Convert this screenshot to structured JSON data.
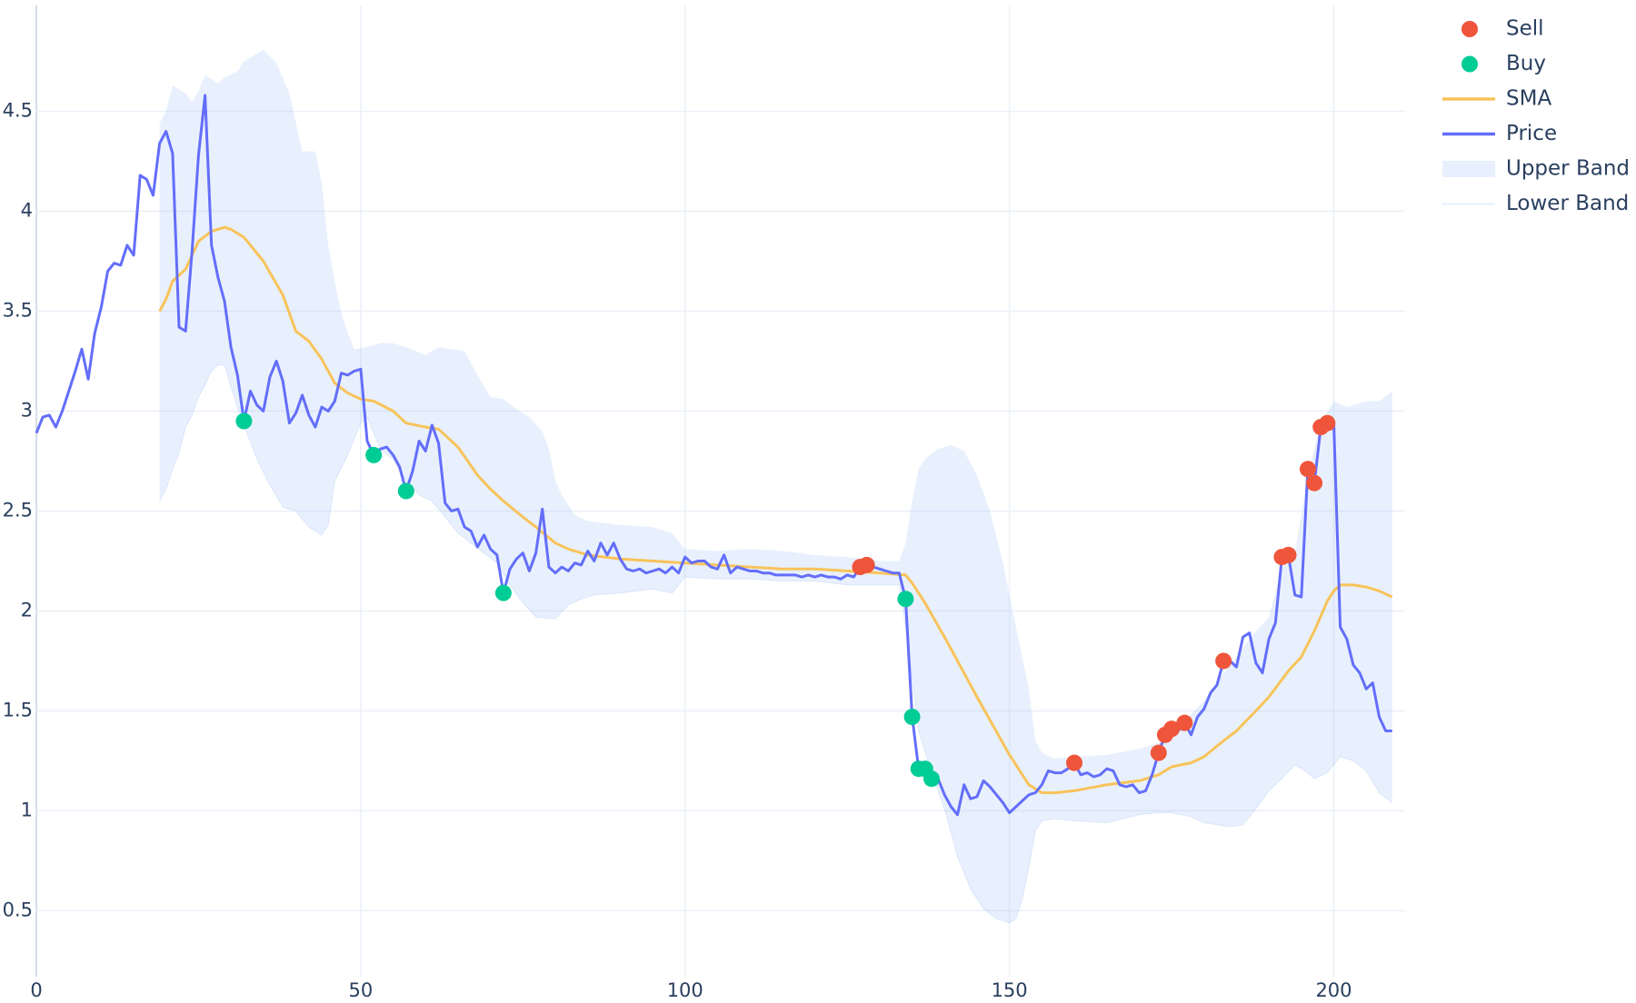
{
  "chart_data": {
    "type": "line",
    "xlim": [
      0,
      211
    ],
    "ylim": [
      0.17,
      5.03
    ],
    "xticks": [
      0,
      50,
      100,
      150,
      200
    ],
    "yticks": [
      0.5,
      1,
      1.5,
      2,
      2.5,
      3,
      3.5,
      4,
      4.5
    ],
    "grid": true,
    "legend": "top-right",
    "series": [
      {
        "name": "Sell",
        "color": "#ef553b",
        "mode": "markers",
        "x": [
          127,
          128,
          160,
          173,
          174,
          175,
          177,
          183,
          192,
          193,
          196,
          197,
          198,
          199
        ],
        "values": [
          2.22,
          2.23,
          1.24,
          1.29,
          1.38,
          1.41,
          1.44,
          1.75,
          2.27,
          2.28,
          2.71,
          2.64,
          2.92,
          2.94
        ]
      },
      {
        "name": "Buy",
        "color": "#00cc96",
        "mode": "markers",
        "x": [
          32,
          52,
          57,
          72,
          134,
          135,
          136,
          137,
          138
        ],
        "values": [
          2.95,
          2.78,
          2.6,
          2.09,
          2.06,
          1.47,
          1.21,
          1.21,
          1.16
        ]
      },
      {
        "name": "SMA",
        "color": "#f8c35a",
        "mode": "lines",
        "x": [
          19,
          20,
          21,
          23,
          25,
          27,
          29,
          30,
          32,
          35,
          38,
          40,
          42,
          44,
          46,
          48,
          50,
          52,
          55,
          57,
          60,
          62,
          65,
          68,
          70,
          72,
          75,
          77,
          80,
          82,
          85,
          90,
          95,
          100,
          105,
          110,
          115,
          120,
          125,
          130,
          134,
          135,
          137,
          140,
          145,
          150,
          153,
          155,
          157,
          160,
          165,
          170,
          173,
          175,
          178,
          180,
          183,
          185,
          188,
          190,
          193,
          195,
          197,
          199,
          200,
          201,
          203,
          205,
          207,
          209
        ],
        "values": [
          3.5,
          3.56,
          3.65,
          3.71,
          3.85,
          3.9,
          3.92,
          3.91,
          3.87,
          3.75,
          3.58,
          3.4,
          3.35,
          3.26,
          3.14,
          3.09,
          3.06,
          3.05,
          3.0,
          2.94,
          2.92,
          2.91,
          2.82,
          2.68,
          2.61,
          2.55,
          2.47,
          2.42,
          2.34,
          2.31,
          2.28,
          2.26,
          2.25,
          2.24,
          2.23,
          2.22,
          2.21,
          2.21,
          2.2,
          2.19,
          2.18,
          2.14,
          2.04,
          1.87,
          1.57,
          1.28,
          1.13,
          1.09,
          1.09,
          1.1,
          1.13,
          1.15,
          1.18,
          1.22,
          1.24,
          1.27,
          1.35,
          1.4,
          1.5,
          1.57,
          1.7,
          1.77,
          1.9,
          2.05,
          2.1,
          2.13,
          2.13,
          2.12,
          2.1,
          2.07
        ]
      },
      {
        "name": "Price",
        "color": "#636efa",
        "mode": "lines",
        "x": [
          0,
          1,
          2,
          3,
          4,
          5,
          6,
          7,
          8,
          9,
          10,
          11,
          12,
          13,
          14,
          15,
          16,
          17,
          18,
          19,
          20,
          21,
          22,
          23,
          24,
          25,
          26,
          27,
          28,
          29,
          30,
          31,
          32,
          33,
          34,
          35,
          36,
          37,
          38,
          39,
          40,
          41,
          42,
          43,
          44,
          45,
          46,
          47,
          48,
          49,
          50,
          51,
          52,
          53,
          54,
          55,
          56,
          57,
          58,
          59,
          60,
          61,
          62,
          63,
          64,
          65,
          66,
          67,
          68,
          69,
          70,
          71,
          72,
          73,
          74,
          75,
          76,
          77,
          78,
          79,
          80,
          81,
          82,
          83,
          84,
          85,
          86,
          87,
          88,
          89,
          90,
          91,
          92,
          93,
          94,
          95,
          96,
          97,
          98,
          99,
          100,
          101,
          102,
          103,
          104,
          105,
          106,
          107,
          108,
          109,
          110,
          111,
          112,
          113,
          114,
          115,
          116,
          117,
          118,
          119,
          120,
          121,
          122,
          123,
          124,
          125,
          126,
          127,
          128,
          129,
          130,
          131,
          132,
          133,
          134,
          135,
          136,
          137,
          138,
          139,
          140,
          141,
          142,
          143,
          144,
          145,
          146,
          147,
          148,
          149,
          150,
          151,
          152,
          153,
          154,
          155,
          156,
          157,
          158,
          159,
          160,
          161,
          162,
          163,
          164,
          165,
          166,
          167,
          168,
          169,
          170,
          171,
          172,
          173,
          174,
          175,
          176,
          177,
          178,
          179,
          180,
          181,
          182,
          183,
          184,
          185,
          186,
          187,
          188,
          189,
          190,
          191,
          192,
          193,
          194,
          195,
          196,
          197,
          198,
          199,
          200,
          201,
          202,
          203,
          204,
          205,
          206,
          207,
          208,
          209
        ],
        "values": [
          2.89,
          2.97,
          2.98,
          2.92,
          3.0,
          3.1,
          3.2,
          3.31,
          3.16,
          3.39,
          3.52,
          3.7,
          3.74,
          3.73,
          3.83,
          3.78,
          4.18,
          4.16,
          4.08,
          4.34,
          4.4,
          4.29,
          3.42,
          3.4,
          3.8,
          4.28,
          4.58,
          3.83,
          3.67,
          3.55,
          3.32,
          3.18,
          2.95,
          3.1,
          3.03,
          3.0,
          3.17,
          3.25,
          3.15,
          2.94,
          2.99,
          3.08,
          2.98,
          2.92,
          3.02,
          3.0,
          3.05,
          3.19,
          3.18,
          3.2,
          3.21,
          2.85,
          2.78,
          2.81,
          2.82,
          2.78,
          2.72,
          2.6,
          2.7,
          2.85,
          2.8,
          2.93,
          2.84,
          2.54,
          2.5,
          2.51,
          2.42,
          2.4,
          2.32,
          2.38,
          2.31,
          2.28,
          2.09,
          2.21,
          2.26,
          2.29,
          2.2,
          2.29,
          2.51,
          2.22,
          2.19,
          2.22,
          2.2,
          2.24,
          2.23,
          2.3,
          2.25,
          2.34,
          2.28,
          2.34,
          2.26,
          2.21,
          2.2,
          2.21,
          2.19,
          2.2,
          2.21,
          2.19,
          2.22,
          2.19,
          2.27,
          2.24,
          2.25,
          2.25,
          2.22,
          2.21,
          2.28,
          2.19,
          2.22,
          2.21,
          2.2,
          2.2,
          2.19,
          2.19,
          2.18,
          2.18,
          2.18,
          2.18,
          2.17,
          2.18,
          2.17,
          2.18,
          2.17,
          2.17,
          2.16,
          2.18,
          2.17,
          2.22,
          2.23,
          2.22,
          2.21,
          2.2,
          2.19,
          2.19,
          2.06,
          1.47,
          1.21,
          1.21,
          1.16,
          1.16,
          1.08,
          1.02,
          0.98,
          1.13,
          1.06,
          1.07,
          1.15,
          1.12,
          1.08,
          1.04,
          0.99,
          1.02,
          1.05,
          1.08,
          1.09,
          1.13,
          1.2,
          1.19,
          1.19,
          1.21,
          1.24,
          1.18,
          1.19,
          1.17,
          1.18,
          1.21,
          1.2,
          1.13,
          1.12,
          1.13,
          1.09,
          1.1,
          1.18,
          1.29,
          1.38,
          1.41,
          1.4,
          1.44,
          1.38,
          1.47,
          1.51,
          1.59,
          1.63,
          1.75,
          1.75,
          1.72,
          1.87,
          1.89,
          1.74,
          1.69,
          1.86,
          1.94,
          2.27,
          2.28,
          2.08,
          2.07,
          2.71,
          2.64,
          2.92,
          2.94,
          2.94,
          1.92,
          1.86,
          1.73,
          1.69,
          1.61,
          1.64,
          1.47,
          1.4,
          1.4
        ]
      },
      {
        "name": "Upper Band",
        "color": "rgba(150,185,245,0.22)",
        "mode": "fill",
        "x": [
          19,
          20,
          21,
          23,
          24,
          25,
          26,
          27,
          28,
          29,
          31,
          32,
          33,
          35,
          37,
          39,
          41,
          43,
          44,
          45,
          46,
          47,
          48,
          49,
          51,
          53,
          55,
          57,
          60,
          62,
          64,
          66,
          68,
          70,
          72,
          74,
          76,
          78,
          79,
          80,
          81,
          83,
          85,
          90,
          95,
          98,
          100,
          105,
          110,
          115,
          120,
          125,
          130,
          133,
          134,
          135,
          136,
          137,
          139,
          141,
          143,
          145,
          147,
          149,
          151,
          153,
          154,
          155,
          157,
          160,
          165,
          170,
          173,
          175,
          177,
          180,
          183,
          185,
          187,
          190,
          192,
          194,
          196,
          198,
          200,
          202,
          205,
          207,
          209
        ],
        "values": [
          4.44,
          4.5,
          4.63,
          4.59,
          4.55,
          4.6,
          4.68,
          4.66,
          4.64,
          4.67,
          4.7,
          4.75,
          4.77,
          4.81,
          4.74,
          4.59,
          4.3,
          4.3,
          4.14,
          3.83,
          3.65,
          3.49,
          3.39,
          3.31,
          3.32,
          3.34,
          3.34,
          3.32,
          3.28,
          3.32,
          3.31,
          3.3,
          3.18,
          3.07,
          3.06,
          3.01,
          2.97,
          2.9,
          2.81,
          2.65,
          2.58,
          2.48,
          2.45,
          2.43,
          2.42,
          2.39,
          2.31,
          2.3,
          2.31,
          2.3,
          2.28,
          2.27,
          2.25,
          2.25,
          2.34,
          2.55,
          2.71,
          2.76,
          2.81,
          2.83,
          2.8,
          2.68,
          2.5,
          2.24,
          1.92,
          1.61,
          1.35,
          1.29,
          1.26,
          1.27,
          1.28,
          1.31,
          1.34,
          1.4,
          1.45,
          1.55,
          1.69,
          1.77,
          1.86,
          1.97,
          2.21,
          2.29,
          2.68,
          2.94,
          3.05,
          3.02,
          3.05,
          3.05,
          3.1
        ]
      },
      {
        "name": "Lower Band",
        "color": "rgba(150,185,245,0.25)",
        "mode": "lines",
        "x": [
          19,
          20,
          21,
          22,
          23,
          24,
          25,
          26,
          27,
          28,
          29,
          30,
          31,
          32,
          34,
          36,
          38,
          40,
          42,
          44,
          45,
          46,
          48,
          49,
          50,
          51,
          52,
          53,
          55,
          57,
          59,
          61,
          63,
          65,
          67,
          69,
          71,
          73,
          75,
          77,
          80,
          82,
          84,
          86,
          90,
          95,
          98,
          100,
          105,
          110,
          115,
          120,
          125,
          130,
          133,
          134,
          135,
          136,
          138,
          140,
          142,
          144,
          146,
          148,
          150,
          151,
          152,
          153,
          154,
          155,
          157,
          160,
          165,
          170,
          173,
          175,
          178,
          180,
          182,
          184,
          186,
          188,
          190,
          192,
          194,
          196,
          197,
          199,
          201,
          203,
          205,
          207,
          209
        ],
        "values": [
          2.55,
          2.61,
          2.71,
          2.79,
          2.92,
          2.98,
          3.07,
          3.13,
          3.2,
          3.23,
          3.23,
          3.12,
          3.02,
          2.93,
          2.76,
          2.63,
          2.52,
          2.5,
          2.42,
          2.38,
          2.43,
          2.65,
          2.78,
          2.86,
          2.94,
          2.97,
          2.89,
          2.81,
          2.76,
          2.65,
          2.58,
          2.55,
          2.47,
          2.39,
          2.34,
          2.29,
          2.24,
          2.13,
          2.04,
          1.97,
          1.96,
          2.03,
          2.06,
          2.08,
          2.09,
          2.11,
          2.09,
          2.17,
          2.16,
          2.16,
          2.15,
          2.15,
          2.13,
          2.13,
          2.13,
          1.92,
          1.66,
          1.4,
          1.19,
          1.01,
          0.77,
          0.61,
          0.51,
          0.46,
          0.44,
          0.46,
          0.56,
          0.72,
          0.9,
          0.95,
          0.96,
          0.95,
          0.94,
          0.98,
          0.99,
          0.99,
          0.97,
          0.94,
          0.93,
          0.92,
          0.93,
          1.01,
          1.1,
          1.16,
          1.23,
          1.19,
          1.16,
          1.19,
          1.27,
          1.25,
          1.2,
          1.09,
          1.04
        ]
      }
    ]
  }
}
